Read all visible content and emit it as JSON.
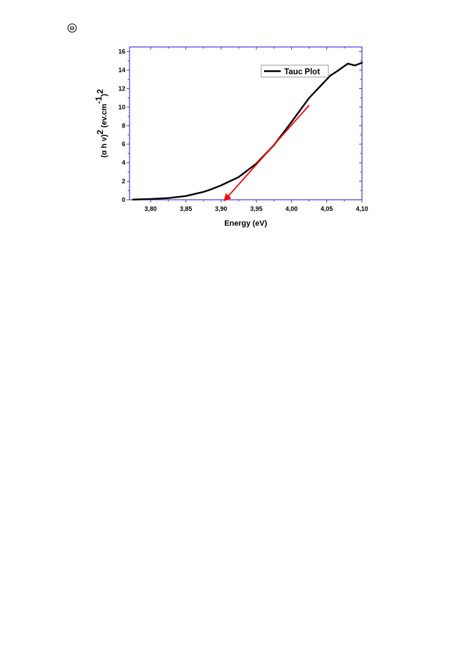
{
  "page_mark": {
    "icon": "circled-symbol-icon"
  },
  "chart_data": {
    "type": "line",
    "xlabel": "Energy (eV)",
    "ylabel": {
      "prefix": "(α h ν)",
      "exp1": "2",
      "middle": " (ev.cm",
      "exp2": "-1",
      "suffix": ")",
      "exp3": "2"
    },
    "xlim": [
      3.77,
      4.1
    ],
    "ylim": [
      0,
      16.5
    ],
    "x_ticks": [
      3.8,
      3.85,
      3.9,
      3.95,
      4.0,
      4.05,
      4.1
    ],
    "x_tick_labels": [
      "3,80",
      "3,85",
      "3,90",
      "3,95",
      "4,00",
      "4,05",
      "4,10"
    ],
    "y_ticks": [
      0,
      2,
      4,
      6,
      8,
      10,
      12,
      14,
      16
    ],
    "y_tick_labels": [
      "0",
      "2",
      "4",
      "6",
      "8",
      "10",
      "12",
      "14",
      "16"
    ],
    "legend": {
      "position": "top-right",
      "entries": [
        "Tauc Plot"
      ]
    },
    "series": [
      {
        "name": "Tauc Plot",
        "color": "#000000",
        "x": [
          3.775,
          3.8,
          3.825,
          3.85,
          3.875,
          3.885,
          3.9,
          3.925,
          3.95,
          3.975,
          4.0,
          4.025,
          4.055,
          4.065,
          4.08,
          4.09,
          4.1
        ],
        "y": [
          0.02,
          0.08,
          0.18,
          0.4,
          0.85,
          1.1,
          1.55,
          2.45,
          3.9,
          5.9,
          8.4,
          11.0,
          13.4,
          13.9,
          14.7,
          14.5,
          14.8
        ]
      }
    ],
    "annotations": [
      {
        "type": "arrow",
        "color": "#ff0000",
        "from": [
          4.025,
          10.2
        ],
        "to": [
          3.905,
          -0.05
        ]
      }
    ]
  }
}
